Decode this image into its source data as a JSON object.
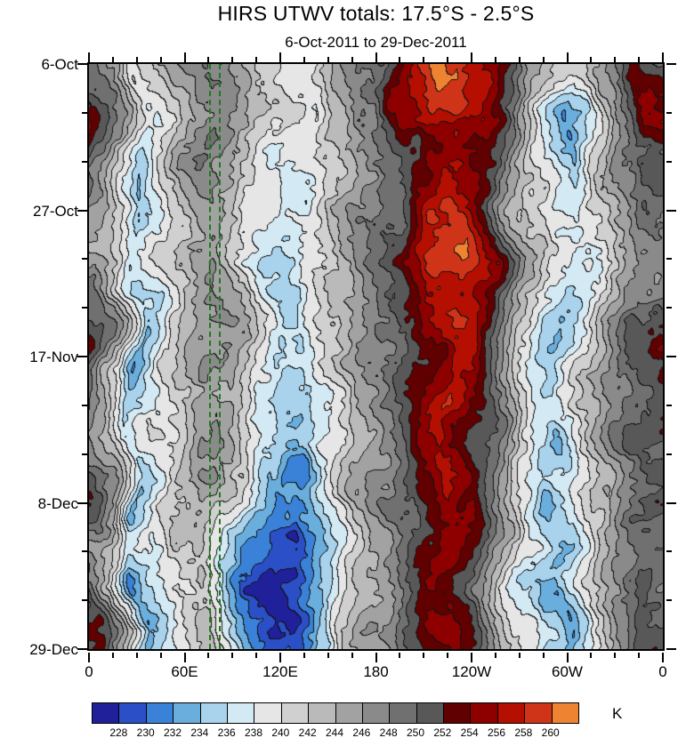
{
  "title": "HIRS UTWV totals: 17.5°S - 2.5°S",
  "subtitle": "6-Oct-2011 to 29-Dec-2011",
  "chart_data": {
    "type": "heatmap",
    "title": "HIRS UTWV totals: 17.5°S - 2.5°S",
    "subtitle": "6-Oct-2011 to 29-Dec-2011",
    "description": "Hovmoller diagram of HIRS upper-tropospheric water vapor brightness temperature (K), longitude vs time",
    "units": "K",
    "x_tick_labels": [
      "0",
      "60E",
      "120E",
      "180",
      "120W",
      "60W",
      "0"
    ],
    "y_tick_labels": [
      "6-Oct",
      "27-Oct",
      "17-Nov",
      "8-Dec",
      "29-Dec"
    ],
    "x_range_deg": [
      0,
      360
    ],
    "time_range": [
      "6-Oct-2011",
      "29-Dec-2011"
    ],
    "levels": [
      228,
      230,
      232,
      234,
      236,
      238,
      240,
      242,
      244,
      246,
      248,
      250,
      252,
      254,
      256,
      258,
      260
    ],
    "colors": [
      "#20209a",
      "#2b4fc6",
      "#3a82d8",
      "#6aaede",
      "#a9d3ec",
      "#d3e9f4",
      "#e6e6e6",
      "#d0d0d0",
      "#bababa",
      "#a2a2a2",
      "#8a8a8a",
      "#707070",
      "#585858",
      "#600000",
      "#8e0000",
      "#b40f00",
      "#d03418",
      "#ee8432"
    ],
    "contour_line_color": "#141414",
    "lon_grid_deg": [
      0,
      15,
      30,
      45,
      60,
      75,
      90,
      105,
      120,
      135,
      150,
      165,
      180,
      195,
      210,
      225,
      240,
      255,
      270,
      285,
      300,
      315,
      330,
      345,
      360
    ],
    "time_grid_weeks": [
      0,
      1,
      2,
      3,
      4,
      5,
      6,
      7,
      8,
      9,
      10,
      11,
      12
    ],
    "values": [
      [
        248,
        246,
        240,
        242,
        246,
        248,
        246,
        242,
        240,
        240,
        244,
        246,
        248,
        252,
        258,
        263,
        259,
        252,
        246,
        242,
        240,
        244,
        248,
        254,
        252
      ],
      [
        254,
        248,
        238,
        240,
        246,
        248,
        246,
        242,
        240,
        238,
        242,
        246,
        248,
        254,
        256,
        258,
        256,
        250,
        244,
        238,
        232,
        242,
        248,
        252,
        254
      ],
      [
        252,
        246,
        236,
        240,
        246,
        248,
        244,
        240,
        238,
        238,
        242,
        246,
        250,
        252,
        254,
        256,
        254,
        250,
        242,
        236,
        232,
        240,
        246,
        250,
        250
      ],
      [
        248,
        244,
        234,
        240,
        244,
        246,
        244,
        240,
        238,
        236,
        242,
        246,
        248,
        250,
        256,
        258,
        256,
        252,
        244,
        238,
        236,
        242,
        246,
        248,
        248
      ],
      [
        246,
        244,
        238,
        240,
        244,
        246,
        242,
        238,
        236,
        238,
        240,
        244,
        248,
        252,
        256,
        258,
        260,
        256,
        246,
        240,
        238,
        240,
        244,
        246,
        246
      ],
      [
        248,
        242,
        236,
        238,
        242,
        246,
        244,
        240,
        236,
        234,
        240,
        244,
        248,
        250,
        254,
        258,
        258,
        252,
        244,
        238,
        234,
        238,
        244,
        248,
        248
      ],
      [
        254,
        246,
        232,
        238,
        242,
        246,
        244,
        238,
        234,
        236,
        240,
        244,
        248,
        250,
        252,
        256,
        256,
        250,
        242,
        236,
        234,
        240,
        246,
        252,
        254
      ],
      [
        252,
        244,
        234,
        238,
        244,
        246,
        242,
        238,
        236,
        234,
        238,
        244,
        248,
        252,
        256,
        258,
        254,
        248,
        242,
        238,
        236,
        242,
        248,
        250,
        252
      ],
      [
        248,
        244,
        236,
        240,
        244,
        246,
        242,
        236,
        234,
        232,
        238,
        242,
        246,
        250,
        254,
        256,
        252,
        248,
        240,
        236,
        234,
        242,
        248,
        250,
        248
      ],
      [
        252,
        246,
        234,
        238,
        242,
        244,
        240,
        234,
        230,
        232,
        238,
        244,
        248,
        250,
        254,
        256,
        254,
        248,
        240,
        234,
        236,
        242,
        246,
        250,
        252
      ],
      [
        248,
        244,
        236,
        238,
        242,
        244,
        238,
        232,
        230,
        228,
        236,
        242,
        246,
        250,
        252,
        254,
        252,
        246,
        238,
        236,
        234,
        240,
        246,
        248,
        248
      ],
      [
        248,
        242,
        232,
        236,
        240,
        242,
        236,
        230,
        226,
        230,
        234,
        242,
        246,
        248,
        252,
        254,
        250,
        244,
        238,
        234,
        232,
        240,
        246,
        250,
        248
      ],
      [
        252,
        244,
        234,
        236,
        240,
        242,
        238,
        232,
        230,
        232,
        236,
        242,
        246,
        248,
        252,
        254,
        250,
        244,
        238,
        236,
        234,
        240,
        246,
        252,
        252
      ]
    ],
    "reference_lines": {
      "style": "dashed",
      "color": "#1d7a1d",
      "lon_positions_deg": [
        76,
        82
      ]
    },
    "colorbar_labels": [
      "228",
      "230",
      "232",
      "234",
      "236",
      "238",
      "240",
      "242",
      "244",
      "246",
      "248",
      "250",
      "252",
      "254",
      "256",
      "258",
      "260"
    ],
    "legend_label": "K"
  }
}
